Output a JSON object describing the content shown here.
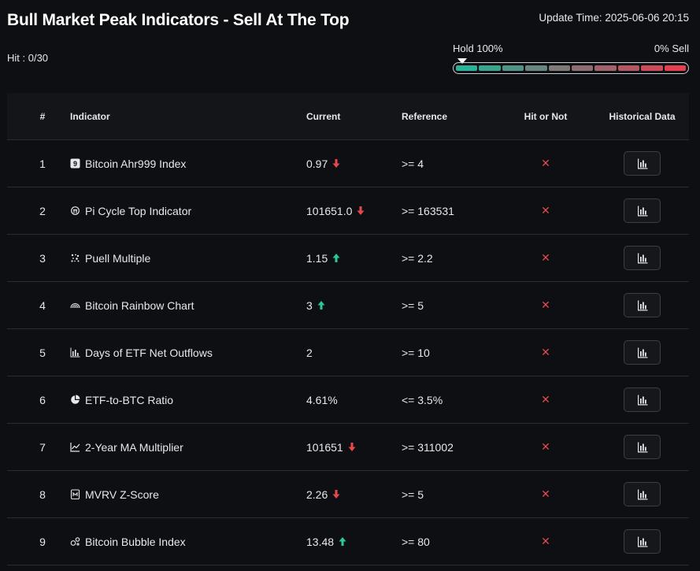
{
  "header": {
    "title": "Bull Market Peak Indicators - Sell At The Top",
    "update_time": "Update Time: 2025-06-06 20:15",
    "hit_count": "Hit : 0/30"
  },
  "meter": {
    "left_label": "Hold 100%",
    "right_label": "0% Sell",
    "segment_colors": [
      "#2bb39a",
      "#3aa58f",
      "#4f9486",
      "#66867f",
      "#7d7a78",
      "#8e6d72",
      "#a1626b",
      "#b55763",
      "#cc4b5a",
      "#e5404f"
    ]
  },
  "table": {
    "columns": {
      "num": "#",
      "indicator": "Indicator",
      "current": "Current",
      "reference": "Reference",
      "hit": "Hit or Not",
      "history": "Historical Data"
    },
    "rows": [
      {
        "num": "1",
        "name": "Bitcoin Ahr999 Index",
        "icon": "ahr999-icon",
        "current": "0.97",
        "trend": "down",
        "reference": ">= 4",
        "hit": "✕"
      },
      {
        "num": "2",
        "name": "Pi Cycle Top Indicator",
        "icon": "pi-cycle-icon",
        "current": "101651.0",
        "trend": "down",
        "reference": ">= 163531",
        "hit": "✕"
      },
      {
        "num": "3",
        "name": "Puell Multiple",
        "icon": "puell-icon",
        "current": "1.15",
        "trend": "up",
        "reference": ">= 2.2",
        "hit": "✕"
      },
      {
        "num": "4",
        "name": "Bitcoin Rainbow Chart",
        "icon": "rainbow-icon",
        "current": "3",
        "trend": "up",
        "reference": ">= 5",
        "hit": "✕"
      },
      {
        "num": "5",
        "name": "Days of ETF Net Outflows",
        "icon": "bar-chart-icon",
        "current": "2",
        "trend": "none",
        "reference": ">= 10",
        "hit": "✕"
      },
      {
        "num": "6",
        "name": "ETF-to-BTC Ratio",
        "icon": "pie-chart-icon",
        "current": "4.61%",
        "trend": "none",
        "reference": "<= 3.5%",
        "hit": "✕"
      },
      {
        "num": "7",
        "name": "2-Year MA Multiplier",
        "icon": "line-chart-icon",
        "current": "101651",
        "trend": "down",
        "reference": ">= 311002",
        "hit": "✕"
      },
      {
        "num": "8",
        "name": "MVRV Z-Score",
        "icon": "mvrv-icon",
        "current": "2.26",
        "trend": "down",
        "reference": ">= 5",
        "hit": "✕"
      },
      {
        "num": "9",
        "name": "Bitcoin Bubble Index",
        "icon": "bubble-icon",
        "current": "13.48",
        "trend": "up",
        "reference": ">= 80",
        "hit": "✕"
      }
    ]
  },
  "colors": {
    "up": "#2bc89a",
    "down": "#e5484d",
    "hit_x": "#e5484d"
  }
}
